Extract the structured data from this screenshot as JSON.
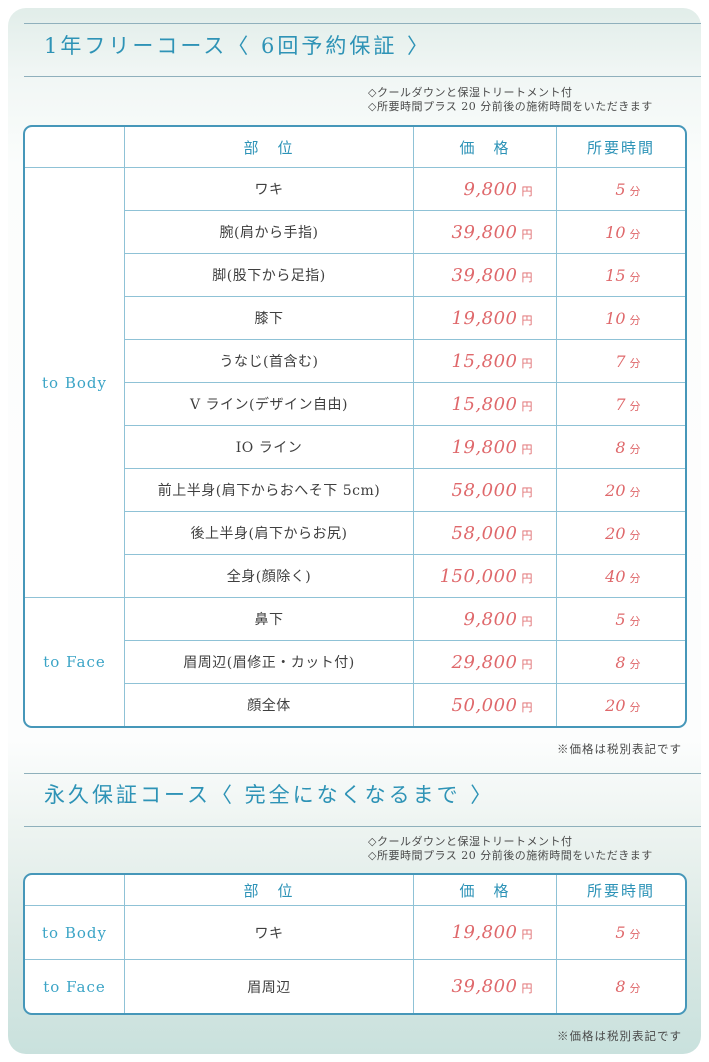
{
  "colors": {
    "title_blue": "#2e93b6",
    "category_blue": "#3ba4c6",
    "header_blue": "#2d93b7",
    "price_red": "#df686b",
    "table_border": "#4697b9",
    "inner_border": "#8fc2d6",
    "card_bottom_teal": "#c9e1dd"
  },
  "sections": [
    {
      "title": "1年フリーコース〈 6回予約保証 〉",
      "notes": [
        "◇クールダウンと保湿トリートメント付",
        "◇所要時間プラス 20 分前後の施術時間をいただきます"
      ],
      "table": {
        "headers": {
          "part": "部　位",
          "price": "価　格",
          "time": "所要時間"
        },
        "price_unit": "円",
        "time_unit": "分",
        "groups": [
          {
            "category": "to Body",
            "rows": [
              {
                "part": "ワキ",
                "price": "9,800",
                "time": "5"
              },
              {
                "part": "腕(肩から手指)",
                "price": "39,800",
                "time": "10"
              },
              {
                "part": "脚(股下から足指)",
                "price": "39,800",
                "time": "15"
              },
              {
                "part": "膝下",
                "price": "19,800",
                "time": "10"
              },
              {
                "part": "うなじ(首含む)",
                "price": "15,800",
                "time": "7"
              },
              {
                "part": "V ライン(デザイン自由)",
                "price": "15,800",
                "time": "7"
              },
              {
                "part": "IO ライン",
                "price": "19,800",
                "time": "8"
              },
              {
                "part": "前上半身(肩下からおへそ下 5cm)",
                "price": "58,000",
                "time": "20"
              },
              {
                "part": "後上半身(肩下からお尻)",
                "price": "58,000",
                "time": "20"
              },
              {
                "part": "全身(顔除く)",
                "price": "150,000",
                "time": "40"
              }
            ]
          },
          {
            "category": "to Face",
            "rows": [
              {
                "part": "鼻下",
                "price": "9,800",
                "time": "5"
              },
              {
                "part": "眉周辺(眉修正・カット付)",
                "price": "29,800",
                "time": "8"
              },
              {
                "part": "顔全体",
                "price": "50,000",
                "time": "20"
              }
            ]
          }
        ]
      },
      "tax_note": "※価格は税別表記です"
    },
    {
      "title": "永久保証コース〈 完全になくなるまで 〉",
      "notes": [
        "◇クールダウンと保湿トリートメント付",
        "◇所要時間プラス 20 分前後の施術時間をいただきます"
      ],
      "table": {
        "headers": {
          "part": "部　位",
          "price": "価　格",
          "time": "所要時間"
        },
        "price_unit": "円",
        "time_unit": "分",
        "groups": [
          {
            "category": "to Body",
            "rows": [
              {
                "part": "ワキ",
                "price": "19,800",
                "time": "5"
              }
            ]
          },
          {
            "category": "to Face",
            "rows": [
              {
                "part": "眉周辺",
                "price": "39,800",
                "time": "8"
              }
            ]
          }
        ]
      },
      "tax_note": "※価格は税別表記です"
    }
  ]
}
